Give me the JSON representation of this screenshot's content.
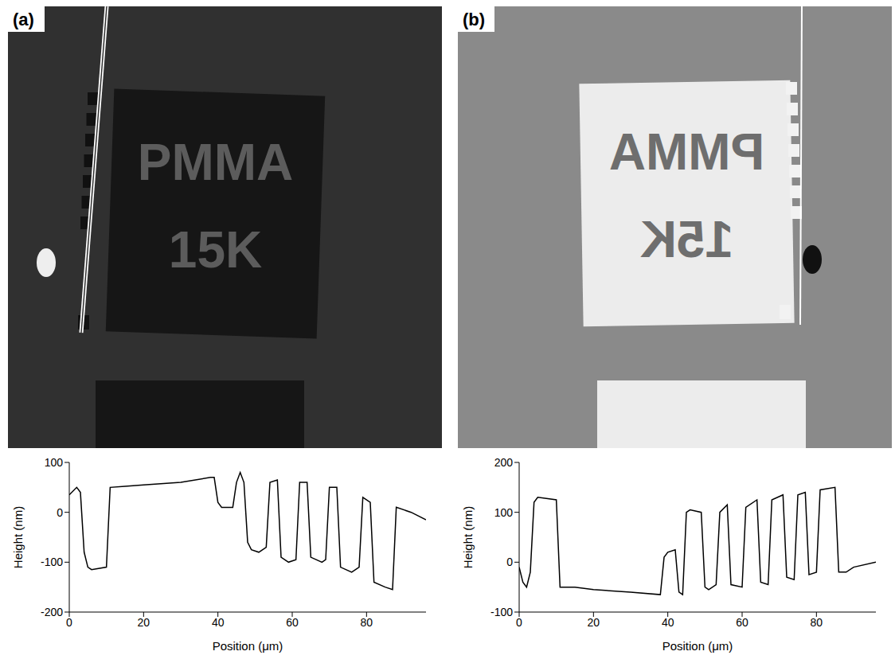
{
  "chart_data": [
    {
      "type": "line",
      "panel_label": "(a)",
      "annotations": [
        "PMMA",
        "15K"
      ],
      "xlabel": "Position (μm)",
      "ylabel": "Height (nm)",
      "color": "#000000",
      "grid": false,
      "xlim": [
        0,
        96
      ],
      "xticks": [
        0,
        20,
        40,
        60,
        80
      ],
      "ylim": [
        -200,
        100
      ],
      "yticks": [
        -200,
        -100,
        0,
        100
      ],
      "x": [
        0,
        2,
        3,
        4,
        5,
        6,
        10,
        11,
        15,
        20,
        30,
        38,
        39,
        40,
        41,
        44,
        45,
        46,
        47,
        48,
        49,
        51,
        53,
        54,
        56,
        57,
        59,
        61,
        62,
        64,
        65,
        68,
        69,
        70,
        72,
        73,
        76,
        78,
        79,
        81,
        82,
        85,
        87,
        88,
        92,
        96
      ],
      "values": [
        35,
        50,
        40,
        -80,
        -110,
        -115,
        -110,
        50,
        52,
        55,
        60,
        70,
        70,
        20,
        10,
        10,
        60,
        80,
        60,
        -60,
        -75,
        -80,
        -70,
        60,
        65,
        -90,
        -100,
        -95,
        60,
        60,
        -90,
        -100,
        -95,
        50,
        50,
        -110,
        -120,
        -110,
        30,
        20,
        -140,
        -150,
        -155,
        10,
        0,
        -15
      ]
    },
    {
      "type": "line",
      "panel_label": "(b)",
      "annotations": [
        "PMMA",
        "15K"
      ],
      "xlabel": "Position (μm)",
      "ylabel": "Height (nm)",
      "color": "#000000",
      "grid": false,
      "xlim": [
        0,
        96
      ],
      "xticks": [
        0,
        20,
        40,
        60,
        80
      ],
      "ylim": [
        -100,
        200
      ],
      "yticks": [
        -100,
        0,
        100,
        200
      ],
      "x": [
        0,
        1,
        2,
        3,
        4,
        5,
        10,
        11,
        15,
        20,
        30,
        38,
        39,
        40,
        42,
        43,
        44,
        45,
        46,
        49,
        50,
        51,
        53,
        54,
        56,
        57,
        60,
        61,
        64,
        65,
        67,
        68,
        71,
        72,
        74,
        75,
        77,
        78,
        80,
        81,
        85,
        86,
        88,
        90,
        96
      ],
      "values": [
        -10,
        -40,
        -50,
        -20,
        120,
        130,
        125,
        -50,
        -50,
        -55,
        -60,
        -65,
        10,
        20,
        25,
        -60,
        -65,
        100,
        105,
        100,
        -50,
        -55,
        -45,
        100,
        115,
        -45,
        -50,
        110,
        125,
        -40,
        -45,
        125,
        135,
        -30,
        -35,
        135,
        140,
        -25,
        -20,
        145,
        150,
        -20,
        -20,
        -10,
        0
      ]
    }
  ]
}
